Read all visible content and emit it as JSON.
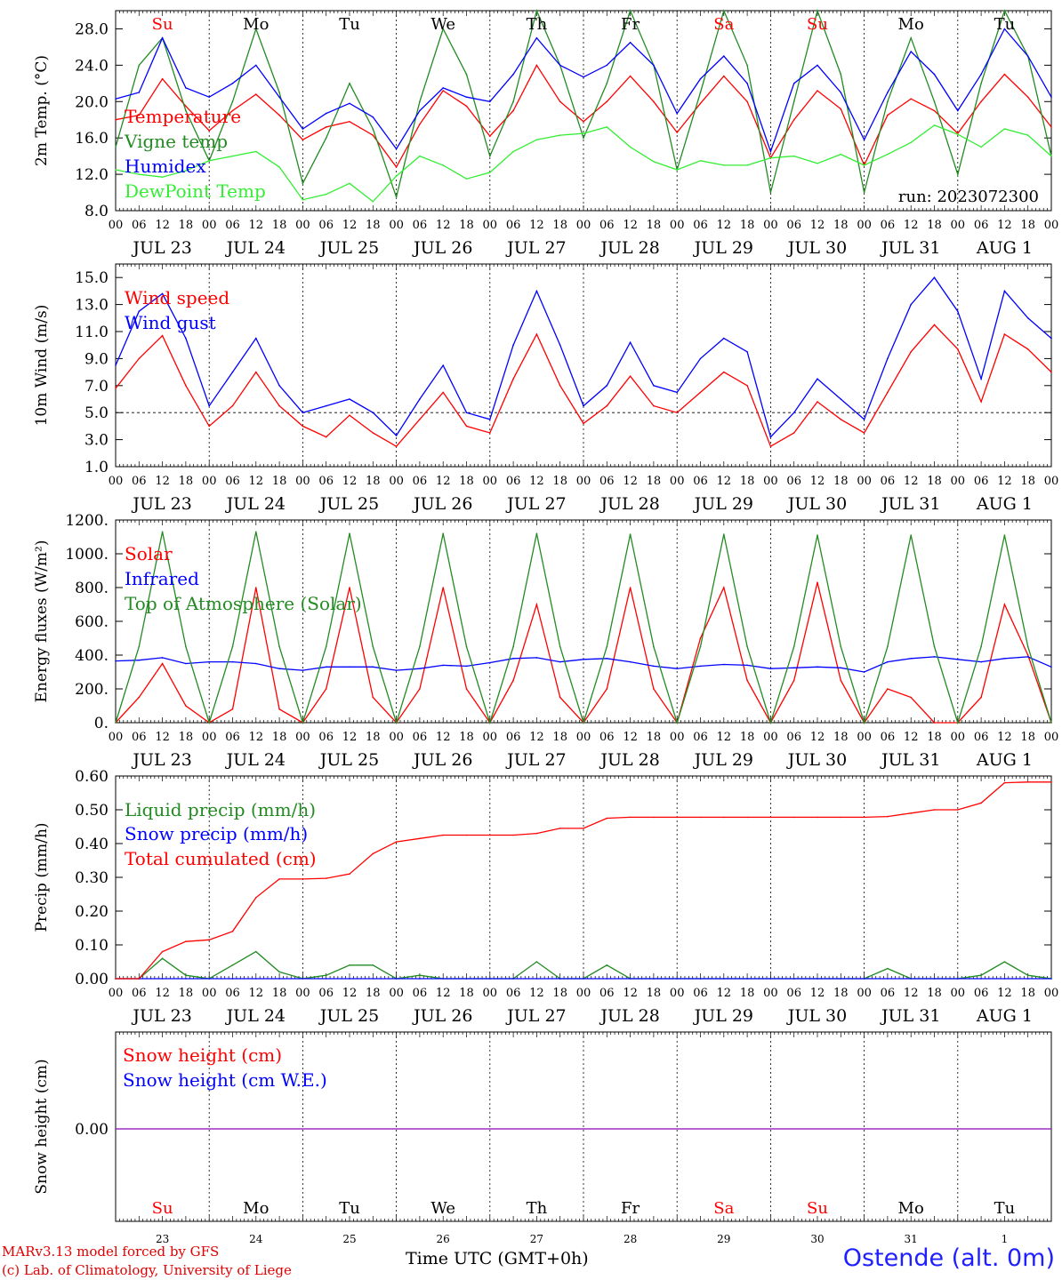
{
  "run_label": "run: 2023072300",
  "day_names": [
    "Su",
    "Mo",
    "Tu",
    "We",
    "Th",
    "Fr",
    "Sa",
    "Su",
    "Mo",
    "Tu"
  ],
  "weekend_flags": [
    true,
    false,
    false,
    false,
    false,
    false,
    true,
    true,
    false,
    false
  ],
  "date_labels": [
    "JUL 23",
    "JUL 24",
    "JUL 25",
    "JUL 26",
    "JUL 27",
    "JUL 28",
    "JUL 29",
    "JUL 30",
    "JUL 31",
    "AUG  1"
  ],
  "day_numbers": [
    "23",
    "24",
    "25",
    "26",
    "27",
    "28",
    "29",
    "30",
    "31",
    "1"
  ],
  "hour_ticks": [
    "00",
    "06",
    "12",
    "18"
  ],
  "final_hour": "00",
  "colors": {
    "red": "#ff0000",
    "green": "#228b22",
    "blue": "#0000ff",
    "light_green": "#33ee33",
    "purple": "#8a2be2"
  },
  "footer": {
    "credit_line1": "MARv3.13 model forced by GFS",
    "credit_line2": "(c) Lab. of Climatology, University of Liege",
    "axis_title": "Time UTC (GMT+0h)",
    "station": "Ostende (alt. 0m)"
  },
  "chart_data": [
    {
      "type": "line",
      "ylabel": "2m Temp. (°C)",
      "ylim": [
        8,
        30
      ],
      "yticks": [
        "8.0",
        "12.0",
        "16.0",
        "20.0",
        "24.0",
        "28.0"
      ],
      "ytick_values": [
        8,
        12,
        16,
        20,
        24,
        28
      ],
      "x": [
        0,
        6,
        12,
        18,
        24,
        30,
        36,
        42,
        48,
        54,
        60,
        66,
        72,
        78,
        84,
        90,
        96,
        102,
        108,
        114,
        120,
        126,
        132,
        138,
        144,
        150,
        156,
        162,
        168,
        174,
        180,
        186,
        192,
        198,
        204,
        210,
        216,
        222,
        228,
        234,
        240
      ],
      "series": [
        {
          "name": "Temperature",
          "color": "red",
          "values": [
            18,
            18.5,
            22.5,
            19.5,
            16.8,
            19,
            20.8,
            18.5,
            15.8,
            17.2,
            17.8,
            16.3,
            12.8,
            17.5,
            21.2,
            19.5,
            16.2,
            19,
            24,
            20,
            17.8,
            20,
            22.8,
            20,
            16.6,
            19.8,
            22.8,
            20,
            13.8,
            18,
            21.2,
            19.2,
            13,
            18.5,
            20.3,
            19,
            16.5,
            20,
            23,
            20.5,
            17.2
          ]
        },
        {
          "name": "Vigne temp",
          "color": "green",
          "values": [
            15,
            24,
            27,
            19,
            13.5,
            20,
            28,
            21,
            11,
            16,
            22,
            17,
            9.5,
            20,
            28,
            23,
            14,
            20,
            30,
            24,
            16,
            22,
            30,
            24,
            12.5,
            21,
            30,
            24,
            10,
            20,
            30,
            23,
            10,
            20,
            27,
            20,
            12,
            22,
            30,
            25,
            14
          ]
        },
        {
          "name": "Humidex",
          "color": "blue",
          "values": [
            20.3,
            21,
            27,
            21.5,
            20.5,
            22,
            24,
            20.5,
            17,
            18.7,
            19.8,
            18.3,
            14.8,
            19,
            21.5,
            20.5,
            20,
            23,
            27,
            24,
            22.7,
            24,
            26.5,
            24,
            18.7,
            22.5,
            25,
            22,
            14.5,
            22,
            24,
            21,
            15.8,
            21,
            25.5,
            23,
            19,
            23,
            28,
            25,
            20.5
          ]
        },
        {
          "name": "DewPoint Temp",
          "color": "light_green",
          "values": [
            12.5,
            12,
            11.7,
            12.4,
            13.5,
            14,
            14.5,
            12.8,
            9.2,
            9.8,
            11,
            9,
            11.8,
            14,
            13,
            11.5,
            12.2,
            14.5,
            15.8,
            16.3,
            16.5,
            17.2,
            15,
            13.4,
            12.5,
            13.5,
            13,
            13,
            13.8,
            14,
            13.2,
            14.2,
            13,
            14.2,
            15.5,
            17.4,
            16.4,
            15,
            17,
            16.3,
            14
          ]
        }
      ]
    },
    {
      "type": "line",
      "ylabel": "10m Wind (m/s)",
      "ylim": [
        1,
        16
      ],
      "yticks": [
        "1.0",
        "3.0",
        "5.0",
        "7.0",
        "9.0",
        "11.0",
        "13.0",
        "15.0"
      ],
      "ytick_values": [
        1,
        3,
        5,
        7,
        9,
        11,
        13,
        15
      ],
      "reference_line": 5,
      "x": [
        0,
        6,
        12,
        18,
        24,
        30,
        36,
        42,
        48,
        54,
        60,
        66,
        72,
        78,
        84,
        90,
        96,
        102,
        108,
        114,
        120,
        126,
        132,
        138,
        144,
        150,
        156,
        162,
        168,
        174,
        180,
        186,
        192,
        198,
        204,
        210,
        216,
        222,
        228,
        234,
        240
      ],
      "series": [
        {
          "name": "Wind speed",
          "color": "red",
          "values": [
            6.8,
            9,
            10.7,
            7,
            4,
            5.5,
            8,
            5.5,
            4,
            3.2,
            4.8,
            3.5,
            2.5,
            4.5,
            6.5,
            4,
            3.5,
            7.5,
            10.8,
            7,
            4.2,
            5.5,
            7.7,
            5.5,
            5,
            6.5,
            8,
            7,
            2.5,
            3.5,
            5.8,
            4.5,
            3.5,
            6.5,
            9.5,
            11.5,
            9.7,
            5.8,
            10.8,
            9.7,
            8
          ]
        },
        {
          "name": "Wind gust",
          "color": "blue",
          "values": [
            8.5,
            12.5,
            13.8,
            10.5,
            5.5,
            8,
            10.5,
            7,
            5,
            5.5,
            6,
            5,
            3.3,
            6,
            8.5,
            5,
            4.5,
            10,
            14,
            10,
            5.5,
            7,
            10.2,
            7,
            6.5,
            9,
            10.5,
            9.5,
            3.2,
            5,
            7.5,
            6,
            4.5,
            9,
            13,
            15,
            12.5,
            7.5,
            14,
            12,
            10.5
          ]
        }
      ]
    },
    {
      "type": "line",
      "ylabel": "Energy fluxes (W/m²)",
      "ylim": [
        0,
        1200
      ],
      "yticks": [
        "0.",
        "200.",
        "400.",
        "600.",
        "800.",
        "1000.",
        "1200."
      ],
      "ytick_values": [
        0,
        200,
        400,
        600,
        800,
        1000,
        1200
      ],
      "x": [
        0,
        6,
        12,
        18,
        24,
        30,
        36,
        42,
        48,
        54,
        60,
        66,
        72,
        78,
        84,
        90,
        96,
        102,
        108,
        114,
        120,
        126,
        132,
        138,
        144,
        150,
        156,
        162,
        168,
        174,
        180,
        186,
        192,
        198,
        204,
        210,
        216,
        222,
        228,
        234,
        240
      ],
      "series": [
        {
          "name": "Solar",
          "color": "red",
          "values": [
            0,
            150,
            350,
            100,
            0,
            80,
            800,
            80,
            0,
            200,
            800,
            150,
            0,
            200,
            800,
            200,
            0,
            250,
            700,
            150,
            0,
            200,
            800,
            200,
            0,
            500,
            800,
            250,
            0,
            250,
            830,
            250,
            0,
            200,
            150,
            0,
            0,
            150,
            700,
            400,
            0
          ]
        },
        {
          "name": "Infrared",
          "color": "blue",
          "values": [
            365,
            370,
            385,
            350,
            360,
            360,
            350,
            320,
            310,
            330,
            330,
            330,
            310,
            320,
            340,
            335,
            355,
            380,
            385,
            360,
            375,
            380,
            360,
            335,
            320,
            335,
            345,
            340,
            320,
            325,
            330,
            325,
            300,
            360,
            380,
            390,
            375,
            360,
            380,
            390,
            330
          ]
        },
        {
          "name": "Top of Atmosphere (Solar)",
          "color": "green",
          "values": [
            0,
            450,
            1130,
            450,
            0,
            450,
            1130,
            450,
            0,
            450,
            1120,
            450,
            0,
            450,
            1120,
            450,
            0,
            450,
            1120,
            450,
            0,
            450,
            1115,
            450,
            0,
            450,
            1115,
            450,
            0,
            450,
            1110,
            450,
            0,
            450,
            1110,
            450,
            0,
            450,
            1110,
            450,
            0
          ]
        }
      ]
    },
    {
      "type": "line",
      "ylabel": "Precip (mm/h)",
      "ylim": [
        0,
        0.6
      ],
      "yticks": [
        "0.00",
        "0.10",
        "0.20",
        "0.30",
        "0.40",
        "0.50",
        "0.60"
      ],
      "ytick_values": [
        0,
        0.1,
        0.2,
        0.3,
        0.4,
        0.5,
        0.6
      ],
      "x": [
        0,
        6,
        12,
        18,
        24,
        30,
        36,
        42,
        48,
        54,
        60,
        66,
        72,
        78,
        84,
        90,
        96,
        102,
        108,
        114,
        120,
        126,
        132,
        138,
        144,
        150,
        156,
        162,
        168,
        174,
        180,
        186,
        192,
        198,
        204,
        210,
        216,
        222,
        228,
        234,
        240
      ],
      "series": [
        {
          "name": "Liquid precip (mm/h)",
          "color": "green",
          "values": [
            0,
            0,
            0.06,
            0.01,
            0,
            0.04,
            0.08,
            0.02,
            0,
            0.01,
            0.04,
            0.04,
            0,
            0.01,
            0,
            0,
            0,
            0,
            0.05,
            0,
            0,
            0.04,
            0,
            0,
            0,
            0,
            0,
            0,
            0,
            0,
            0,
            0,
            0,
            0.03,
            0,
            0,
            0,
            0.01,
            0.05,
            0.01,
            0
          ]
        },
        {
          "name": "Snow precip (mm/h)",
          "color": "blue",
          "values": [
            0,
            0,
            0,
            0,
            0,
            0,
            0,
            0,
            0,
            0,
            0,
            0,
            0,
            0,
            0,
            0,
            0,
            0,
            0,
            0,
            0,
            0,
            0,
            0,
            0,
            0,
            0,
            0,
            0,
            0,
            0,
            0,
            0,
            0,
            0,
            0,
            0,
            0,
            0,
            0,
            0
          ]
        },
        {
          "name": "Total cumulated (cm)",
          "color": "red",
          "values": [
            0,
            0,
            0.08,
            0.11,
            0.115,
            0.14,
            0.24,
            0.295,
            0.295,
            0.297,
            0.31,
            0.37,
            0.405,
            0.415,
            0.425,
            0.425,
            0.425,
            0.425,
            0.43,
            0.445,
            0.445,
            0.475,
            0.478,
            0.478,
            0.478,
            0.478,
            0.478,
            0.478,
            0.478,
            0.478,
            0.478,
            0.478,
            0.478,
            0.48,
            0.49,
            0.5,
            0.5,
            0.52,
            0.58,
            0.582,
            0.582
          ]
        }
      ]
    },
    {
      "type": "line",
      "ylabel": "Snow height (cm)",
      "yticks": [
        "0.00"
      ],
      "ytick_values": [
        0
      ],
      "x": [
        0,
        240
      ],
      "series": [
        {
          "name": "Snow height (cm)",
          "color": "red",
          "values": [
            0,
            0
          ]
        },
        {
          "name": "Snow height (cm W.E.)",
          "color": "blue",
          "values": [
            0,
            0
          ]
        }
      ]
    }
  ]
}
